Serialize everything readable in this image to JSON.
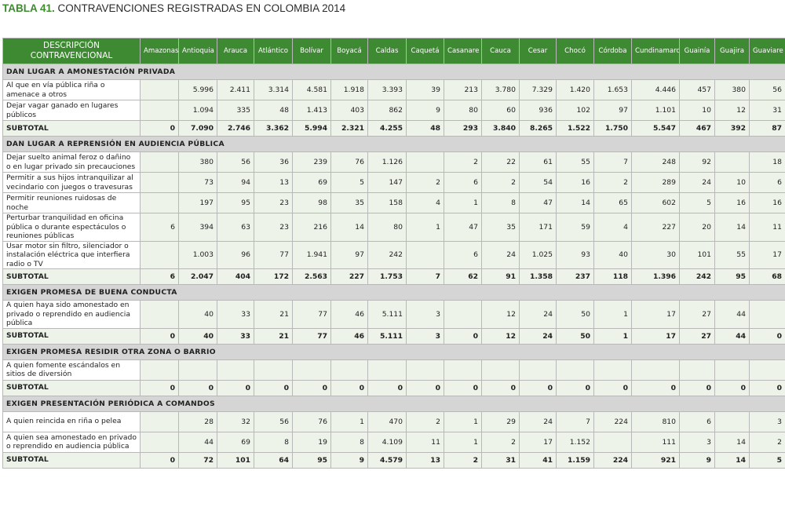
{
  "title": {
    "label": "TABLA 41.",
    "text": "CONTRAVENCIONES REGISTRADAS EN COLOMBIA 2014"
  },
  "headers": [
    "DESCRIPCIÓN CONTRAVENCIONAL",
    "Amazonas",
    "Antioquia",
    "Arauca",
    "Atlántico",
    "Bolívar",
    "Boyacá",
    "Caldas",
    "Caquetá",
    "Casanare",
    "Cauca",
    "Cesar",
    "Chocó",
    "Córdoba",
    "Cundinamarca",
    "Guainía",
    "Guajira",
    "Guaviare"
  ],
  "rows": [
    {
      "type": "section",
      "label": "DAN LUGAR A AMONESTACIÓN PRIVADA"
    },
    {
      "type": "data",
      "label": "Al que en vía pública riña o amenace a otros",
      "values": [
        "",
        "5.996",
        "2.411",
        "3.314",
        "4.581",
        "1.918",
        "3.393",
        "39",
        "213",
        "3.780",
        "7.329",
        "1.420",
        "1.653",
        "4.446",
        "457",
        "380",
        "56"
      ]
    },
    {
      "type": "data",
      "label": "Dejar vagar ganado en lugares públicos",
      "values": [
        "",
        "1.094",
        "335",
        "48",
        "1.413",
        "403",
        "862",
        "9",
        "80",
        "60",
        "936",
        "102",
        "97",
        "1.101",
        "10",
        "12",
        "31"
      ]
    },
    {
      "type": "subtotal",
      "label": "SUBTOTAL",
      "values": [
        "0",
        "7.090",
        "2.746",
        "3.362",
        "5.994",
        "2.321",
        "4.255",
        "48",
        "293",
        "3.840",
        "8.265",
        "1.522",
        "1.750",
        "5.547",
        "467",
        "392",
        "87"
      ]
    },
    {
      "type": "section",
      "label": "DAN LUGAR A REPRENSIÓN EN AUDIENCIA PÚBLICA"
    },
    {
      "type": "data",
      "label": "Dejar suelto animal feroz o dañino o en lugar privado sin precauciones",
      "values": [
        "",
        "380",
        "56",
        "36",
        "239",
        "76",
        "1.126",
        "",
        "2",
        "22",
        "61",
        "55",
        "7",
        "248",
        "92",
        "",
        "18"
      ]
    },
    {
      "type": "data",
      "label": "Permitir a sus hijos intranquilizar al vecindario con juegos o travesuras",
      "values": [
        "",
        "73",
        "94",
        "13",
        "69",
        "5",
        "147",
        "2",
        "6",
        "2",
        "54",
        "16",
        "2",
        "289",
        "24",
        "10",
        "6"
      ]
    },
    {
      "type": "data",
      "label": "Permitir reuniones ruidosas de noche",
      "values": [
        "",
        "197",
        "95",
        "23",
        "98",
        "35",
        "158",
        "4",
        "1",
        "8",
        "47",
        "14",
        "65",
        "602",
        "5",
        "16",
        "16"
      ]
    },
    {
      "type": "data",
      "label": "Perturbar tranquilidad en oficina pública o durante espectáculos o reuniones públicas",
      "values": [
        "6",
        "394",
        "63",
        "23",
        "216",
        "14",
        "80",
        "1",
        "47",
        "35",
        "171",
        "59",
        "4",
        "227",
        "20",
        "14",
        "11"
      ]
    },
    {
      "type": "data",
      "label": "Usar motor sin filtro, silenciador o instalación eléctrica que interfiera radio o TV",
      "values": [
        "",
        "1.003",
        "96",
        "77",
        "1.941",
        "97",
        "242",
        "",
        "6",
        "24",
        "1.025",
        "93",
        "40",
        "30",
        "101",
        "55",
        "17"
      ]
    },
    {
      "type": "subtotal",
      "label": "SUBTOTAL",
      "values": [
        "6",
        "2.047",
        "404",
        "172",
        "2.563",
        "227",
        "1.753",
        "7",
        "62",
        "91",
        "1.358",
        "237",
        "118",
        "1.396",
        "242",
        "95",
        "68"
      ]
    },
    {
      "type": "section",
      "label": "EXIGEN PROMESA DE BUENA CONDUCTA"
    },
    {
      "type": "data",
      "label": "A quien haya sido amonestado en privado o reprendido en audiencia pública",
      "values": [
        "",
        "40",
        "33",
        "21",
        "77",
        "46",
        "5.111",
        "3",
        "",
        "12",
        "24",
        "50",
        "1",
        "17",
        "27",
        "44",
        ""
      ]
    },
    {
      "type": "subtotal",
      "label": "SUBTOTAL",
      "values": [
        "0",
        "40",
        "33",
        "21",
        "77",
        "46",
        "5.111",
        "3",
        "0",
        "12",
        "24",
        "50",
        "1",
        "17",
        "27",
        "44",
        "0"
      ]
    },
    {
      "type": "section",
      "label": "EXIGEN PROMESA RESIDIR OTRA ZONA O BARRIO"
    },
    {
      "type": "data",
      "label": "A quien fomente escándalos en sitios de diversión",
      "values": [
        "",
        "",
        "",
        "",
        "",
        "",
        "",
        "",
        "",
        "",
        "",
        "",
        "",
        "",
        "",
        "",
        ""
      ]
    },
    {
      "type": "subtotal",
      "label": "SUBTOTAL",
      "values": [
        "0",
        "0",
        "0",
        "0",
        "0",
        "0",
        "0",
        "0",
        "0",
        "0",
        "0",
        "0",
        "0",
        "0",
        "0",
        "0",
        "0"
      ]
    },
    {
      "type": "section",
      "label": "EXIGEN PRESENTACIÓN PERIÓDICA A COMANDOS"
    },
    {
      "type": "data",
      "label": "A quien reincida en riña o pelea",
      "values": [
        "",
        "28",
        "32",
        "56",
        "76",
        "1",
        "470",
        "2",
        "1",
        "29",
        "24",
        "7",
        "224",
        "810",
        "6",
        "",
        "3"
      ]
    },
    {
      "type": "data",
      "label": "A quien sea amonestado en privado o reprendido en audiencia pública",
      "values": [
        "",
        "44",
        "69",
        "8",
        "19",
        "8",
        "4.109",
        "11",
        "1",
        "2",
        "17",
        "1.152",
        "",
        "111",
        "3",
        "14",
        "2"
      ]
    },
    {
      "type": "subtotal",
      "label": "SUBTOTAL",
      "values": [
        "0",
        "72",
        "101",
        "64",
        "95",
        "9",
        "4.579",
        "13",
        "2",
        "31",
        "41",
        "1.159",
        "224",
        "921",
        "9",
        "14",
        "5"
      ]
    }
  ]
}
